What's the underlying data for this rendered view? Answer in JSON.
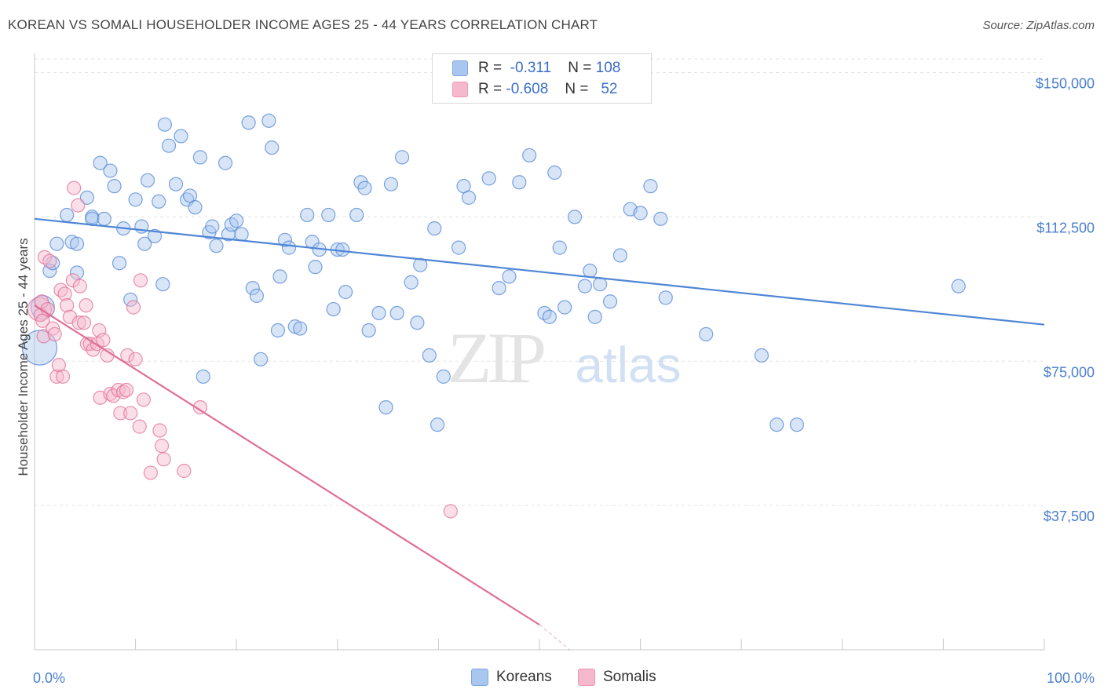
{
  "title": "KOREAN VS SOMALI HOUSEHOLDER INCOME AGES 25 - 44 YEARS CORRELATION CHART",
  "source": "Source: ZipAtlas.com",
  "watermark": {
    "zip": "ZIP",
    "atlas": "atlas"
  },
  "legend_stats": [
    {
      "r_label": "R =",
      "r_value": "-0.311",
      "n_label": "N =",
      "n_value": "108",
      "color": "#a9c6ee"
    },
    {
      "r_label": "R =",
      "r_value": "-0.608",
      "n_label": "N =",
      "n_value": "52",
      "color": "#f6b8cc"
    }
  ],
  "legend_bottom": [
    {
      "label": "Koreans",
      "color": "#a9c6ee"
    },
    {
      "label": "Somalis",
      "color": "#f6b8cc"
    }
  ],
  "chart_data": {
    "type": "scatter",
    "xlabel": "",
    "ylabel": "Householder Income Ages 25 - 44 years",
    "xlim": [
      0,
      100
    ],
    "ylim": [
      0,
      155000
    ],
    "x_tick_labels": [
      "0.0%",
      "100.0%"
    ],
    "y_ticks": [
      37500,
      75000,
      112500,
      150000
    ],
    "y_tick_labels": [
      "$37,500",
      "$75,000",
      "$112,500",
      "$150,000"
    ],
    "grid": true,
    "legend_position": "top-center",
    "series": [
      {
        "name": "Koreans",
        "color": "#4f86d6",
        "fill": "#a9c6ee",
        "trend": {
          "x": [
            0,
            100
          ],
          "y": [
            112000,
            84500
          ]
        },
        "points": [
          [
            0.5,
            78500
          ],
          [
            0.8,
            89000
          ],
          [
            1.5,
            98500
          ],
          [
            1.8,
            100500
          ],
          [
            2.2,
            105500
          ],
          [
            3.2,
            113000
          ],
          [
            3.7,
            106000
          ],
          [
            4.2,
            98000
          ],
          [
            4.2,
            105500
          ],
          [
            5.2,
            117500
          ],
          [
            5.7,
            112500
          ],
          [
            5.7,
            112000
          ],
          [
            6.5,
            126500
          ],
          [
            6.9,
            112000
          ],
          [
            7.5,
            124500
          ],
          [
            7.9,
            120500
          ],
          [
            8.4,
            100500
          ],
          [
            8.8,
            109500
          ],
          [
            9.5,
            91000
          ],
          [
            10.0,
            117000
          ],
          [
            10.6,
            110000
          ],
          [
            10.9,
            105500
          ],
          [
            11.2,
            122000
          ],
          [
            11.9,
            107500
          ],
          [
            12.3,
            116500
          ],
          [
            12.7,
            95000
          ],
          [
            12.9,
            136500
          ],
          [
            13.3,
            131000
          ],
          [
            14.0,
            121000
          ],
          [
            14.5,
            133500
          ],
          [
            15.1,
            117000
          ],
          [
            15.4,
            118000
          ],
          [
            15.9,
            115000
          ],
          [
            16.4,
            128000
          ],
          [
            16.7,
            71000
          ],
          [
            17.3,
            108500
          ],
          [
            17.6,
            110000
          ],
          [
            18.0,
            105000
          ],
          [
            18.9,
            126500
          ],
          [
            19.2,
            108000
          ],
          [
            19.5,
            110500
          ],
          [
            20.0,
            111500
          ],
          [
            20.5,
            108000
          ],
          [
            21.2,
            137000
          ],
          [
            21.6,
            94000
          ],
          [
            22.0,
            92000
          ],
          [
            22.4,
            75500
          ],
          [
            23.2,
            137500
          ],
          [
            23.5,
            130500
          ],
          [
            24.1,
            83000
          ],
          [
            24.3,
            97000
          ],
          [
            24.8,
            106500
          ],
          [
            25.2,
            104500
          ],
          [
            25.8,
            84000
          ],
          [
            26.3,
            83500
          ],
          [
            27.0,
            113000
          ],
          [
            27.5,
            106000
          ],
          [
            27.8,
            99500
          ],
          [
            28.2,
            104000
          ],
          [
            29.1,
            113000
          ],
          [
            29.6,
            88500
          ],
          [
            30.0,
            104000
          ],
          [
            30.5,
            104000
          ],
          [
            30.8,
            93000
          ],
          [
            31.9,
            113000
          ],
          [
            32.3,
            121500
          ],
          [
            32.7,
            120000
          ],
          [
            33.1,
            83000
          ],
          [
            34.1,
            87500
          ],
          [
            34.8,
            63000
          ],
          [
            35.3,
            121000
          ],
          [
            35.9,
            87500
          ],
          [
            36.4,
            128000
          ],
          [
            37.3,
            95500
          ],
          [
            37.9,
            85000
          ],
          [
            38.2,
            100000
          ],
          [
            39.1,
            76500
          ],
          [
            39.6,
            109500
          ],
          [
            39.9,
            58500
          ],
          [
            40.5,
            71000
          ],
          [
            42.0,
            104500
          ],
          [
            42.5,
            120500
          ],
          [
            43.0,
            117500
          ],
          [
            45.0,
            122500
          ],
          [
            46.0,
            94000
          ],
          [
            47.0,
            97000
          ],
          [
            48.0,
            121500
          ],
          [
            49.0,
            128500
          ],
          [
            50.5,
            87500
          ],
          [
            51.0,
            86500
          ],
          [
            51.5,
            124000
          ],
          [
            52.0,
            104500
          ],
          [
            52.5,
            89000
          ],
          [
            53.5,
            112500
          ],
          [
            54.5,
            94500
          ],
          [
            55.0,
            98500
          ],
          [
            55.5,
            86500
          ],
          [
            56.0,
            95000
          ],
          [
            57.0,
            90500
          ],
          [
            58.0,
            102500
          ],
          [
            59.0,
            114500
          ],
          [
            60.0,
            113500
          ],
          [
            61.0,
            120500
          ],
          [
            62.0,
            112000
          ],
          [
            62.5,
            91500
          ],
          [
            66.5,
            82000
          ],
          [
            72.0,
            76500
          ],
          [
            73.5,
            58500
          ],
          [
            75.5,
            58500
          ],
          [
            91.5,
            94500
          ]
        ]
      },
      {
        "name": "Somalis",
        "color": "#e06f97",
        "fill": "#f6b8cc",
        "trend": {
          "x": [
            0,
            50
          ],
          "y": [
            89500,
            6500
          ]
        },
        "trend_dash": {
          "x": [
            50,
            53
          ],
          "y": [
            6500,
            0
          ]
        },
        "points": [
          [
            0.5,
            88500
          ],
          [
            0.6,
            87000
          ],
          [
            0.7,
            90500
          ],
          [
            0.8,
            85500
          ],
          [
            0.9,
            81500
          ],
          [
            1.0,
            102000
          ],
          [
            1.3,
            88500
          ],
          [
            1.5,
            101000
          ],
          [
            1.8,
            83500
          ],
          [
            2.0,
            82000
          ],
          [
            2.2,
            71000
          ],
          [
            2.4,
            74000
          ],
          [
            2.6,
            93500
          ],
          [
            2.8,
            71000
          ],
          [
            3.0,
            92500
          ],
          [
            3.2,
            89500
          ],
          [
            3.5,
            86500
          ],
          [
            3.8,
            96000
          ],
          [
            3.9,
            120000
          ],
          [
            4.3,
            115500
          ],
          [
            4.4,
            85000
          ],
          [
            4.5,
            94500
          ],
          [
            4.9,
            85000
          ],
          [
            5.1,
            89500
          ],
          [
            5.2,
            79500
          ],
          [
            5.5,
            79500
          ],
          [
            5.8,
            78000
          ],
          [
            6.2,
            79500
          ],
          [
            6.4,
            83000
          ],
          [
            6.5,
            65500
          ],
          [
            6.8,
            80500
          ],
          [
            7.2,
            76500
          ],
          [
            7.5,
            66500
          ],
          [
            7.8,
            66000
          ],
          [
            8.3,
            67500
          ],
          [
            8.5,
            61500
          ],
          [
            8.8,
            67000
          ],
          [
            9.1,
            67500
          ],
          [
            9.2,
            76500
          ],
          [
            9.5,
            61500
          ],
          [
            9.8,
            89000
          ],
          [
            10.0,
            75500
          ],
          [
            10.4,
            58000
          ],
          [
            10.8,
            65000
          ],
          [
            11.5,
            46000
          ],
          [
            12.4,
            57000
          ],
          [
            12.6,
            53000
          ],
          [
            12.8,
            49500
          ],
          [
            14.8,
            46500
          ],
          [
            16.4,
            63000
          ],
          [
            41.2,
            36000
          ],
          [
            10.5,
            96000
          ]
        ]
      }
    ]
  }
}
